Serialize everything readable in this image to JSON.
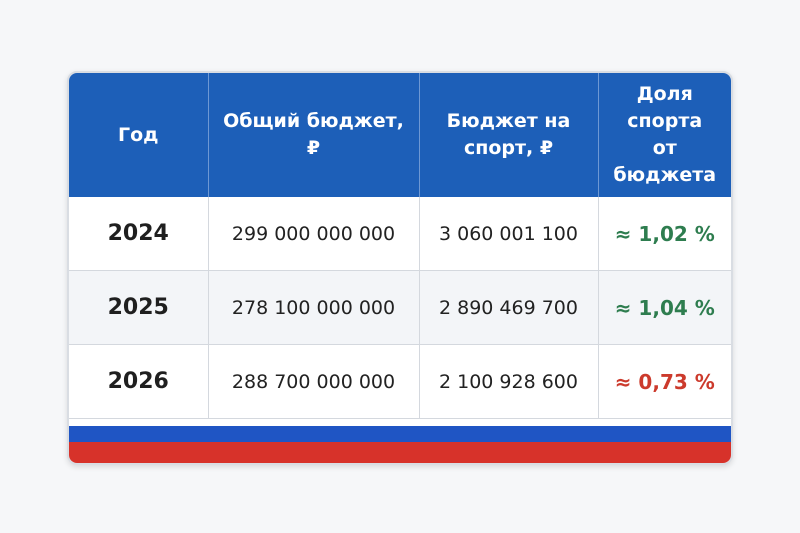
{
  "table": {
    "header": [
      "Год",
      "Общий бюджет, ₽",
      "Бюджет на спорт, ₽",
      "Доля спорта от бюджета"
    ],
    "rows": [
      {
        "cells": [
          "2024",
          "299 000 000 000",
          "3 060 001 100",
          "≈ 1,02 %"
        ],
        "share_color": "#2e7d4f"
      },
      {
        "cells": [
          "2025",
          "278 100 000 000",
          "2 890 469 700",
          "≈ 1,04 %"
        ],
        "share_color": "#2e7d4f"
      },
      {
        "cells": [
          "2026",
          "288 700 000 000",
          "2 100 928 600",
          "≈ 0,73 %"
        ],
        "share_color": "#cc3a2c"
      }
    ]
  }
}
